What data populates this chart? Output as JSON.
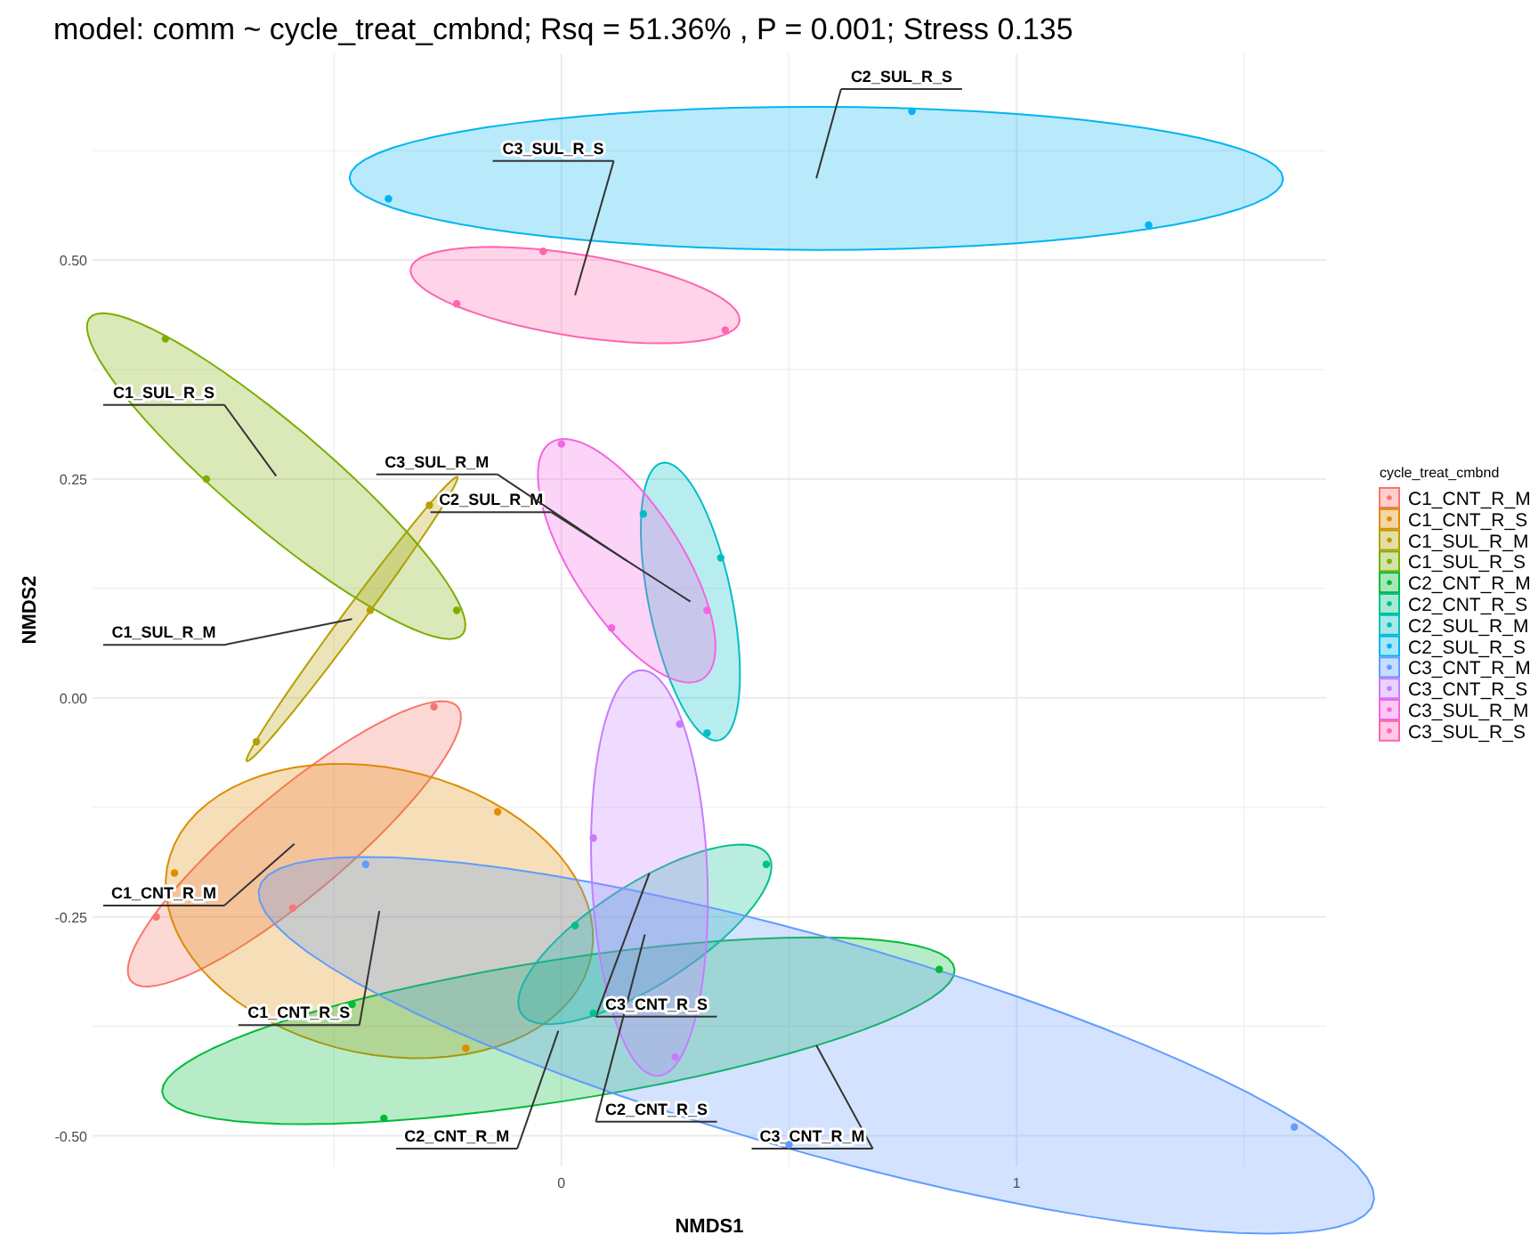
{
  "chart_data": {
    "type": "scatter",
    "title": "model: comm ~ cycle_treat_cmbnd; Rsq = 51.36% , P = 0.001; Stress 0.135",
    "xlabel": "NMDS1",
    "ylabel": "NMDS2",
    "legend_title": "cycle_treat_cmbnd",
    "legend": "right",
    "grid": true,
    "marker": "circle",
    "xlim": [
      -1.03,
      1.68
    ],
    "ylim": [
      -0.535,
      0.736
    ],
    "xticks": [
      0,
      1
    ],
    "yticks": [
      {
        "value": -0.5,
        "label": "-0.50"
      },
      {
        "value": -0.25,
        "label": "-0.25"
      },
      {
        "value": 0,
        "label": "0.00"
      },
      {
        "value": 0.25,
        "label": "0.25"
      },
      {
        "value": 0.5,
        "label": "0.50"
      }
    ],
    "series": [
      {
        "name": "C1_CNT_R_M",
        "color": "#f8766d",
        "x": [
          -0.28,
          -0.89,
          -0.59
        ],
        "values": [
          -0.01,
          -0.25,
          -0.24
        ]
      },
      {
        "name": "C1_CNT_R_S",
        "color": "#de8c00",
        "x": [
          -0.14,
          -0.85,
          -0.21
        ],
        "values": [
          -0.13,
          -0.2,
          -0.4
        ]
      },
      {
        "name": "C1_SUL_R_M",
        "color": "#b79f00",
        "x": [
          -0.29,
          -0.42,
          -0.67
        ],
        "values": [
          0.22,
          0.1,
          -0.05
        ]
      },
      {
        "name": "C1_SUL_R_S",
        "color": "#7cae00",
        "x": [
          -0.87,
          -0.78,
          -0.23
        ],
        "values": [
          0.41,
          0.25,
          0.1
        ]
      },
      {
        "name": "C2_CNT_R_M",
        "color": "#00ba38",
        "x": [
          0.83,
          -0.46,
          -0.39
        ],
        "values": [
          -0.31,
          -0.35,
          -0.48
        ]
      },
      {
        "name": "C2_CNT_R_S",
        "color": "#00c08b",
        "x": [
          0.45,
          0.07,
          0.03
        ],
        "values": [
          -0.19,
          -0.36,
          -0.26
        ]
      },
      {
        "name": "C2_SUL_R_M",
        "color": "#00bfc4",
        "x": [
          0.35,
          0.32,
          0.18
        ],
        "values": [
          0.16,
          -0.04,
          0.21
        ]
      },
      {
        "name": "C2_SUL_R_S",
        "color": "#00b4f0",
        "x": [
          -0.38,
          0.77,
          1.29
        ],
        "values": [
          0.57,
          0.67,
          0.54
        ]
      },
      {
        "name": "C3_CNT_R_M",
        "color": "#619cff",
        "x": [
          -0.43,
          0.5,
          1.61
        ],
        "values": [
          -0.19,
          -0.51,
          -0.49
        ]
      },
      {
        "name": "C3_CNT_R_S",
        "color": "#c77cff",
        "x": [
          0.07,
          0.25,
          0.26
        ],
        "values": [
          -0.16,
          -0.41,
          -0.03
        ]
      },
      {
        "name": "C3_SUL_R_M",
        "color": "#f564e3",
        "x": [
          0.0,
          0.11,
          0.32
        ],
        "values": [
          0.29,
          0.08,
          0.1
        ]
      },
      {
        "name": "C3_SUL_R_S",
        "color": "#ff64b0",
        "x": [
          -0.04,
          -0.23,
          0.36
        ],
        "values": [
          0.51,
          0.45,
          0.42
        ]
      }
    ],
    "annotations": [
      "C1_CNT_R_M",
      "C1_CNT_R_S",
      "C1_SUL_R_M",
      "C1_SUL_R_S",
      "C2_CNT_R_M",
      "C2_CNT_R_S",
      "C2_SUL_R_M",
      "C2_SUL_R_S",
      "C3_CNT_R_M",
      "C3_CNT_R_S",
      "C3_SUL_R_M",
      "C3_SUL_R_S"
    ]
  }
}
